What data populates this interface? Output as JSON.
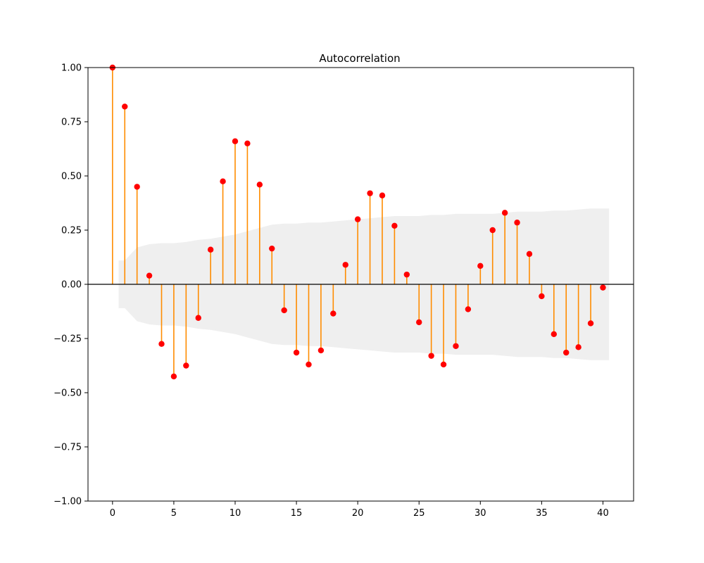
{
  "chart_data": {
    "type": "stem",
    "title": "Autocorrelation",
    "xlabel": "",
    "ylabel": "",
    "xlim": [
      -2,
      42.5
    ],
    "ylim": [
      -1.0,
      1.0
    ],
    "x_ticks": [
      0,
      5,
      10,
      15,
      20,
      25,
      30,
      35,
      40
    ],
    "y_ticks": [
      -1.0,
      -0.75,
      -0.5,
      -0.25,
      0.0,
      0.25,
      0.5,
      0.75,
      1.0
    ],
    "y_tick_labels": [
      "−1.00",
      "−0.75",
      "−0.50",
      "−0.25",
      "0.00",
      "0.25",
      "0.50",
      "0.75",
      "1.00"
    ],
    "x_tick_labels": [
      "0",
      "5",
      "10",
      "15",
      "20",
      "25",
      "30",
      "35",
      "40"
    ],
    "grid": false,
    "colors": {
      "stem": "#ff8c00",
      "marker": "#ff0000",
      "confidence_band": "#efefef",
      "zero_line": "#000000"
    },
    "lags": [
      0,
      1,
      2,
      3,
      4,
      5,
      6,
      7,
      8,
      9,
      10,
      11,
      12,
      13,
      14,
      15,
      16,
      17,
      18,
      19,
      20,
      21,
      22,
      23,
      24,
      25,
      26,
      27,
      28,
      29,
      30,
      31,
      32,
      33,
      34,
      35,
      36,
      37,
      38,
      39,
      40
    ],
    "values": [
      1.0,
      0.82,
      0.45,
      0.04,
      -0.275,
      -0.425,
      -0.375,
      -0.155,
      0.16,
      0.475,
      0.66,
      0.65,
      0.46,
      0.165,
      -0.12,
      -0.315,
      -0.37,
      -0.305,
      -0.135,
      0.09,
      0.3,
      0.42,
      0.41,
      0.27,
      0.045,
      -0.175,
      -0.33,
      -0.37,
      -0.285,
      -0.115,
      0.085,
      0.25,
      0.33,
      0.285,
      0.14,
      -0.055,
      -0.23,
      -0.315,
      -0.29,
      -0.18,
      -0.015
    ],
    "confidence_band": {
      "lags": [
        0.5,
        1,
        2,
        3,
        4,
        5,
        6,
        7,
        8,
        9,
        10,
        11,
        12,
        13,
        14,
        15,
        16,
        17,
        18,
        19,
        20,
        21,
        22,
        23,
        24,
        25,
        26,
        27,
        28,
        29,
        30,
        31,
        32,
        33,
        34,
        35,
        36,
        37,
        38,
        39,
        40,
        40.5
      ],
      "upper": [
        0.11,
        0.11,
        0.17,
        0.185,
        0.19,
        0.19,
        0.195,
        0.205,
        0.21,
        0.22,
        0.23,
        0.245,
        0.26,
        0.275,
        0.28,
        0.28,
        0.285,
        0.285,
        0.29,
        0.295,
        0.3,
        0.305,
        0.31,
        0.315,
        0.315,
        0.315,
        0.32,
        0.32,
        0.325,
        0.325,
        0.325,
        0.325,
        0.33,
        0.335,
        0.335,
        0.335,
        0.34,
        0.34,
        0.345,
        0.35,
        0.35,
        0.35
      ]
    }
  }
}
